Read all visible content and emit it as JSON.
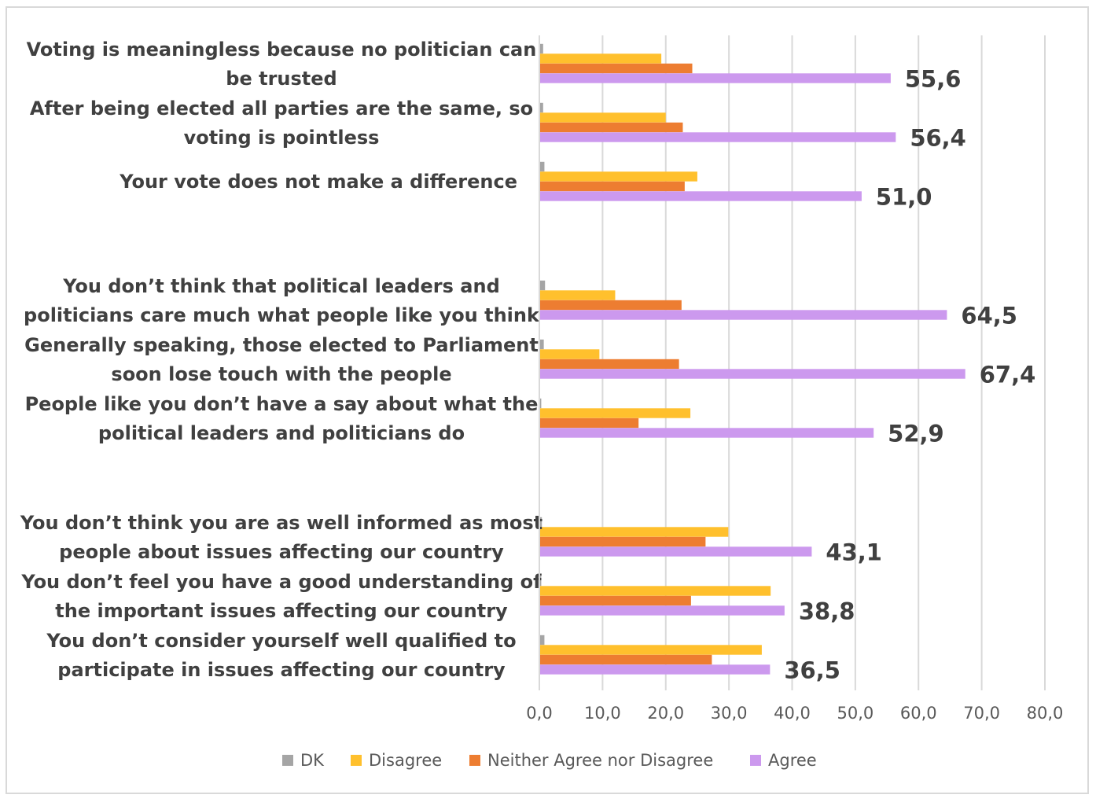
{
  "chart_data": {
    "type": "bar",
    "orientation": "horizontal",
    "title": "",
    "xlabel": "",
    "ylabel": "",
    "xlim": [
      0,
      80
    ],
    "ticks": [
      "0,0",
      "10,0",
      "20,0",
      "30,0",
      "40,0",
      "50,0",
      "60,0",
      "70,0",
      "80,0"
    ],
    "grid": true,
    "legend_position": "bottom",
    "categories": [
      [
        "Voting is meaningless because no politician can",
        "be trusted"
      ],
      [
        "After being elected all parties are the same, so",
        "voting is pointless"
      ],
      [
        "Your vote does not make a difference"
      ],
      [
        "You don’t think that political leaders and",
        "politicians care much what people like you think"
      ],
      [
        "Generally speaking, those elected to Parliament",
        "soon lose touch with the people"
      ],
      [
        "People like you don’t have a say about what the",
        "political leaders and politicians do"
      ],
      [
        "You don’t think you are as well informed as most",
        "people about issues affecting our country"
      ],
      [
        "You don’t feel you have a good understanding of",
        "the important issues affecting our country"
      ],
      [
        "You don’t consider yourself well qualified to",
        "participate in issues affecting our country"
      ]
    ],
    "series": [
      {
        "name": "DK",
        "color": "#a5a5a5",
        "values": [
          0.6,
          0.6,
          0.8,
          0.9,
          0.7,
          0.3,
          0.4,
          0.3,
          0.8
        ]
      },
      {
        "name": "Disagree",
        "color": "#ffc02d",
        "values": [
          19.3,
          20.0,
          25.0,
          12.0,
          9.5,
          23.9,
          29.9,
          36.6,
          35.2
        ]
      },
      {
        "name": "Neither Agree nor Disagree",
        "color": "#ed7d31",
        "values": [
          24.2,
          22.7,
          23.0,
          22.5,
          22.1,
          15.7,
          26.3,
          24.0,
          27.3
        ]
      },
      {
        "name": "Agree",
        "color": "#cc99ee",
        "values": [
          55.6,
          56.4,
          51.0,
          64.5,
          67.4,
          52.9,
          43.1,
          38.8,
          36.5
        ]
      }
    ],
    "data_labels": [
      "55,6",
      "56,4",
      "51,0",
      "64,5",
      "67,4",
      "52,9",
      "43,1",
      "38,8",
      "36,5"
    ]
  }
}
